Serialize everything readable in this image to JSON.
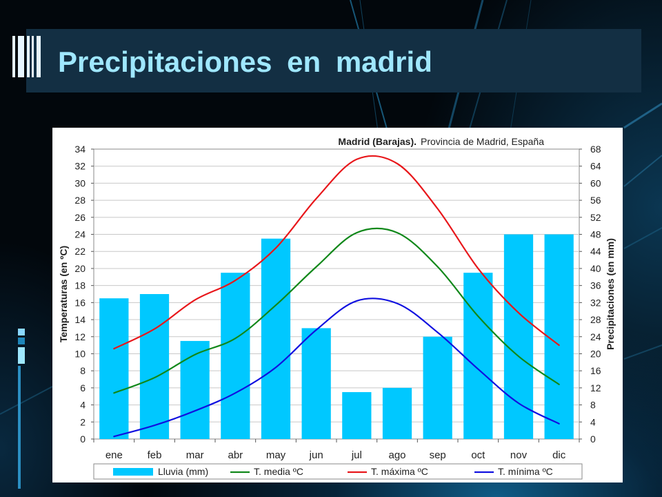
{
  "slide": {
    "title": "Precipitaciones en madrid"
  },
  "chart_data": {
    "type": "bar+line",
    "title": "Madrid (Barajas).",
    "subtitle": "Provincia de Madrid, España",
    "categories": [
      "ene",
      "feb",
      "mar",
      "abr",
      "may",
      "jun",
      "jul",
      "ago",
      "sep",
      "oct",
      "nov",
      "dic"
    ],
    "y_left": {
      "label": "Temperaturas (en ºC)",
      "min": 0,
      "max": 34,
      "ticks": [
        0,
        2,
        4,
        6,
        8,
        10,
        12,
        14,
        16,
        18,
        20,
        22,
        24,
        26,
        28,
        30,
        32,
        34
      ]
    },
    "y_right": {
      "label": "Precipitaciones (en mm)",
      "min": 0,
      "max": 68,
      "ticks": [
        0,
        4,
        8,
        12,
        16,
        20,
        24,
        28,
        32,
        36,
        40,
        44,
        48,
        52,
        56,
        60,
        64,
        68
      ]
    },
    "grid": true,
    "legend_position": "bottom",
    "bars": {
      "name": "Lluvia (mm)",
      "axis": "right",
      "color": "#00c8ff",
      "values": [
        33,
        34,
        23,
        39,
        47,
        26,
        11,
        12,
        24,
        39,
        48,
        48
      ]
    },
    "series": [
      {
        "name": "T. media ºC",
        "axis": "left",
        "color": "#11881a",
        "values": [
          5.4,
          7.2,
          9.9,
          11.8,
          15.7,
          20.2,
          24.2,
          24.2,
          20.2,
          14.4,
          9.7,
          6.4
        ]
      },
      {
        "name": "T. máxima ºC",
        "axis": "left",
        "color": "#e8171b",
        "values": [
          10.6,
          12.9,
          16.3,
          18.6,
          22.4,
          28.2,
          32.8,
          32.3,
          27.0,
          20.0,
          14.8,
          11.0
        ]
      },
      {
        "name": "T. mínima ºC",
        "axis": "left",
        "color": "#1111e0",
        "values": [
          0.3,
          1.6,
          3.3,
          5.4,
          8.4,
          12.8,
          16.2,
          15.9,
          12.5,
          8.2,
          4.2,
          1.8
        ]
      }
    ]
  }
}
